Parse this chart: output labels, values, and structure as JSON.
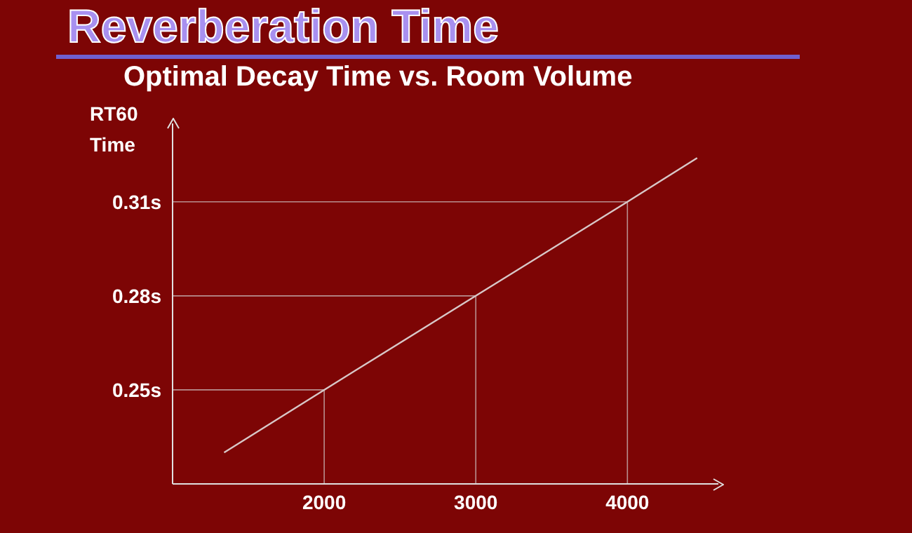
{
  "chart_data": {
    "type": "line",
    "title": "Reverberation Time",
    "subtitle": "Optimal Decay Time vs. Room Volume",
    "ylabel": "RT60 Time",
    "series": [
      {
        "color": "#d8c8c8",
        "x": [
          1340,
          2000,
          3000,
          4000,
          4460
        ],
        "values": [
          0.23,
          0.25,
          0.28,
          0.31,
          0.324
        ]
      }
    ],
    "xlim": [
      1000,
      4600
    ],
    "ylim": [
      0.22,
      0.335
    ],
    "xticks": [
      2000,
      3000,
      4000
    ],
    "yticks": [
      {
        "value": 0.25,
        "label": "0.25s"
      },
      {
        "value": 0.28,
        "label": "0.28s"
      },
      {
        "value": 0.31,
        "label": "0.31s"
      }
    ],
    "ref_lines": [
      {
        "axis": "x",
        "value": 2000,
        "color": "#b89090"
      },
      {
        "axis": "x",
        "value": 3000,
        "color": "#b89090"
      },
      {
        "axis": "x",
        "value": 4000,
        "color": "#b89090"
      },
      {
        "axis": "y",
        "value": 0.25,
        "color": "#b89090"
      },
      {
        "axis": "y",
        "value": 0.28,
        "color": "#b89090"
      },
      {
        "axis": "y",
        "value": 0.31,
        "color": "#b89090"
      }
    ],
    "marker": "none",
    "line_style": "solid"
  }
}
